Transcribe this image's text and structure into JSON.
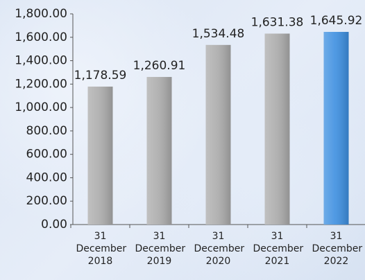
{
  "chart_data": {
    "type": "bar",
    "categories": [
      "31 December 2018",
      "31 December 2019",
      "31 December 2020",
      "31 December 2021",
      "31 December 2022"
    ],
    "values": [
      1178.59,
      1260.91,
      1534.48,
      1631.38,
      1645.92
    ],
    "value_labels": [
      "1,178.59",
      "1,260.91",
      "1,534.48",
      "1,631.38",
      "1,645.92"
    ],
    "colors": [
      "#ababab",
      "#ababab",
      "#ababab",
      "#ababab",
      "#3d8fe0"
    ],
    "ylim": [
      0,
      1800
    ],
    "yticks": [
      {
        "value": 0,
        "label": "0.00"
      },
      {
        "value": 200,
        "label": "200.00"
      },
      {
        "value": 400,
        "label": "400.00"
      },
      {
        "value": 600,
        "label": "600.00"
      },
      {
        "value": 800,
        "label": "800.00"
      },
      {
        "value": 1000,
        "label": "1,000.00"
      },
      {
        "value": 1200,
        "label": "1,200.00"
      },
      {
        "value": 1400,
        "label": "1,400.00"
      },
      {
        "value": 1600,
        "label": "1,600.00"
      },
      {
        "value": 1800,
        "label": "1,800.00"
      }
    ]
  }
}
